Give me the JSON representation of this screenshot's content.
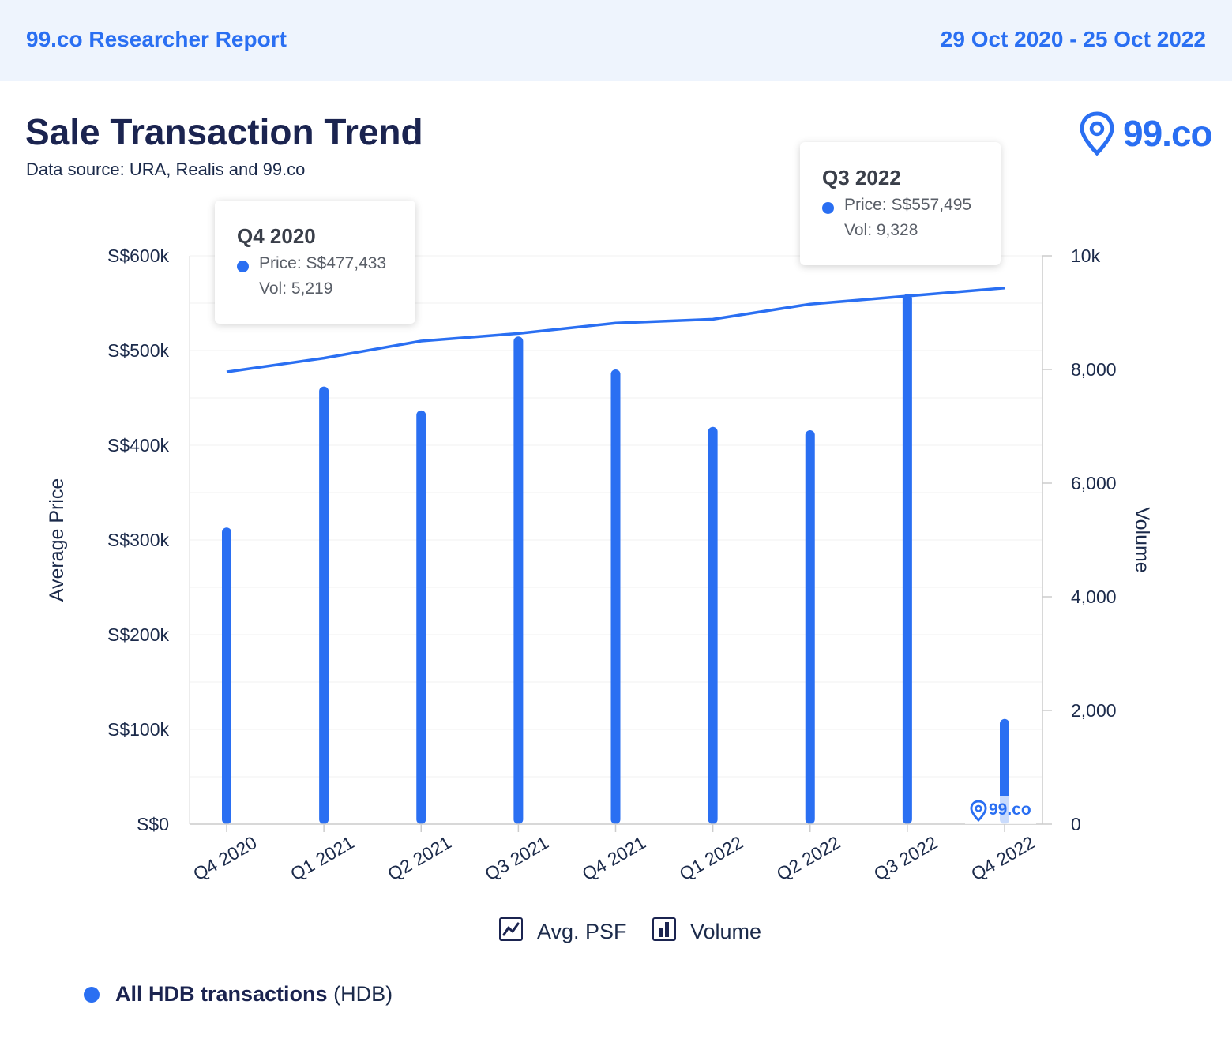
{
  "header": {
    "brand": "99.co Researcher Report",
    "date_range": "29 Oct 2020 - 25 Oct 2022"
  },
  "title": "Sale Transaction Trend",
  "subtitle": "Data source: URA, Realis and 99.co",
  "logo": {
    "text": "99.co",
    "icon": "location-pin-icon"
  },
  "colors": {
    "accent": "#2a6ff2",
    "header_bg": "#eef4fd",
    "title": "#1b2450"
  },
  "tooltips": [
    {
      "title": "Q4 2020",
      "price": "Price: S$477,433",
      "vol": "Vol: 5,219"
    },
    {
      "title": "Q3 2022",
      "price": "Price: S$557,495",
      "vol": "Vol: 9,328"
    }
  ],
  "legend": {
    "line_label": "Avg. PSF",
    "bar_label": "Volume",
    "line_icon": "line-chart-icon",
    "bar_icon": "bar-chart-icon"
  },
  "series_legend": {
    "name": "All HDB transactions",
    "type": "(HDB)"
  },
  "watermark": "99.co",
  "chart_data": {
    "type": "bar",
    "categories": [
      "Q4 2020",
      "Q1 2021",
      "Q2 2021",
      "Q3 2021",
      "Q4 2021",
      "Q1 2022",
      "Q2 2022",
      "Q3 2022",
      "Q4 2022"
    ],
    "series": [
      {
        "name": "Volume",
        "type": "bar",
        "axis": "right",
        "values": [
          5219,
          7700,
          7280,
          8580,
          8000,
          6990,
          6930,
          9328,
          1850
        ]
      },
      {
        "name": "Avg. PSF",
        "type": "line",
        "axis": "left",
        "values": [
          477433,
          492000,
          510000,
          518000,
          529000,
          533000,
          549000,
          557495,
          566000
        ]
      }
    ],
    "ylabel": "Average Price",
    "y2label": "Volume",
    "ylim": [
      0,
      600000
    ],
    "y2lim": [
      0,
      10000
    ],
    "yticks": [
      "S$0",
      "S$100k",
      "S$200k",
      "S$300k",
      "S$400k",
      "S$500k",
      "S$600k"
    ],
    "y2ticks": [
      "0",
      "2,000",
      "4,000",
      "6,000",
      "8,000",
      "10k"
    ],
    "grid": true
  }
}
